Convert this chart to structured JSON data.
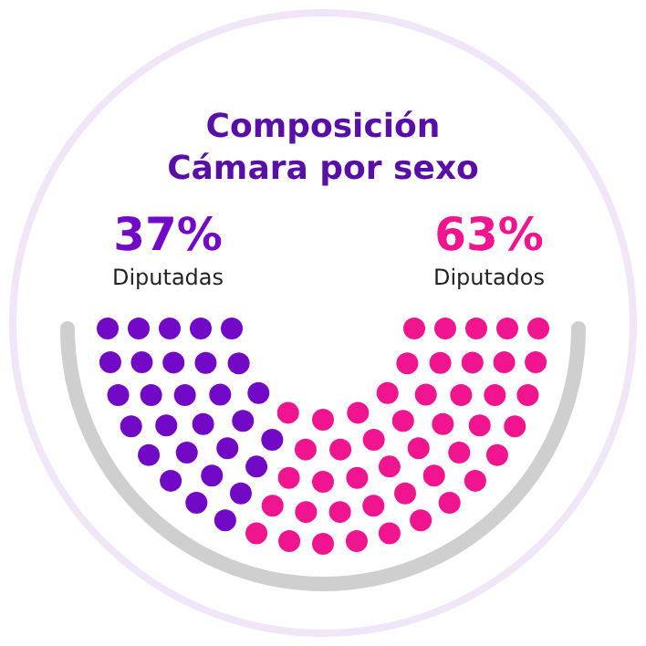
{
  "chart_data": {
    "type": "other",
    "title": "Composición\nCámara por sexo",
    "categories": [
      "Diputadas",
      "Diputados"
    ],
    "values": [
      37,
      63
    ],
    "value_labels": [
      "37%",
      "63%"
    ],
    "colors": [
      "#7209c7",
      "#f0158f"
    ]
  }
}
